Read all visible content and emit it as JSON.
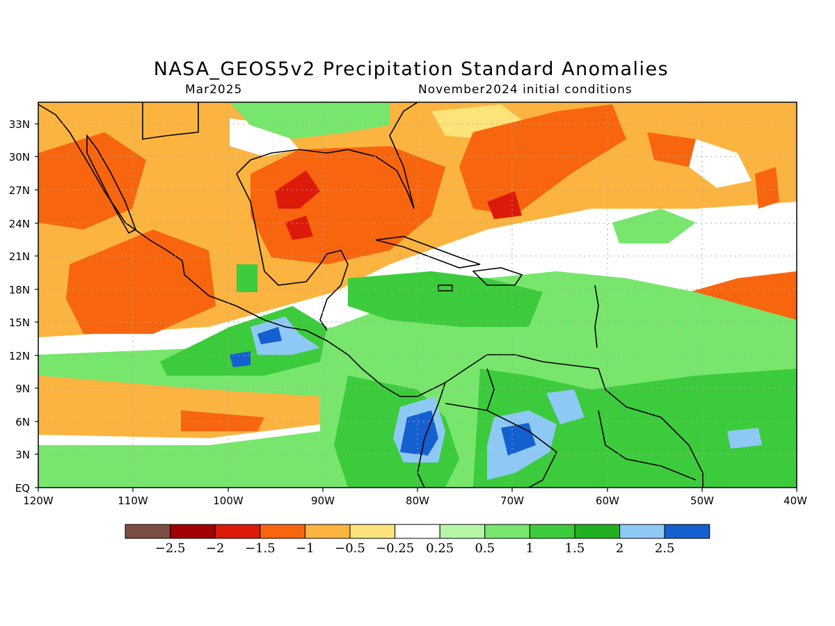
{
  "title": "NASA_GEOS5v2 Precipitation Standard Anomalies",
  "valid_month": "Mar2025",
  "init": "November2024 initial conditions",
  "lat_labels": [
    "33N",
    "30N",
    "27N",
    "24N",
    "21N",
    "18N",
    "15N",
    "12N",
    "9N",
    "6N",
    "3N",
    "EQ"
  ],
  "lon_labels": [
    "120W",
    "110W",
    "100W",
    "90W",
    "80W",
    "70W",
    "60W",
    "50W",
    "40W"
  ],
  "colorbar": {
    "colors": [
      "#7a4e43",
      "#a10000",
      "#dc1a0a",
      "#f8650f",
      "#fbb440",
      "#fde37a",
      "#ffffff",
      "#b6f5a6",
      "#78e66d",
      "#3ccb3c",
      "#20b020",
      "#8ec9f5",
      "#1560d0"
    ],
    "labels": [
      "−2.5",
      "−2",
      "−1.5",
      "−1",
      "−0.5",
      "−0.25",
      "0.25",
      "0.5",
      "1",
      "1.5",
      "2",
      "2.5"
    ]
  },
  "anomaly_regions": [
    {
      "category": "dry",
      "color": "#fbb440"
    },
    {
      "category": "very dry",
      "color": "#f8650f"
    },
    {
      "category": "extreme dry",
      "color": "#dc1a0a"
    },
    {
      "category": "wet",
      "color": "#78e66d"
    },
    {
      "category": "very wet",
      "color": "#3ccb3c"
    },
    {
      "category": "extreme wet",
      "color": "#1560d0"
    }
  ]
}
